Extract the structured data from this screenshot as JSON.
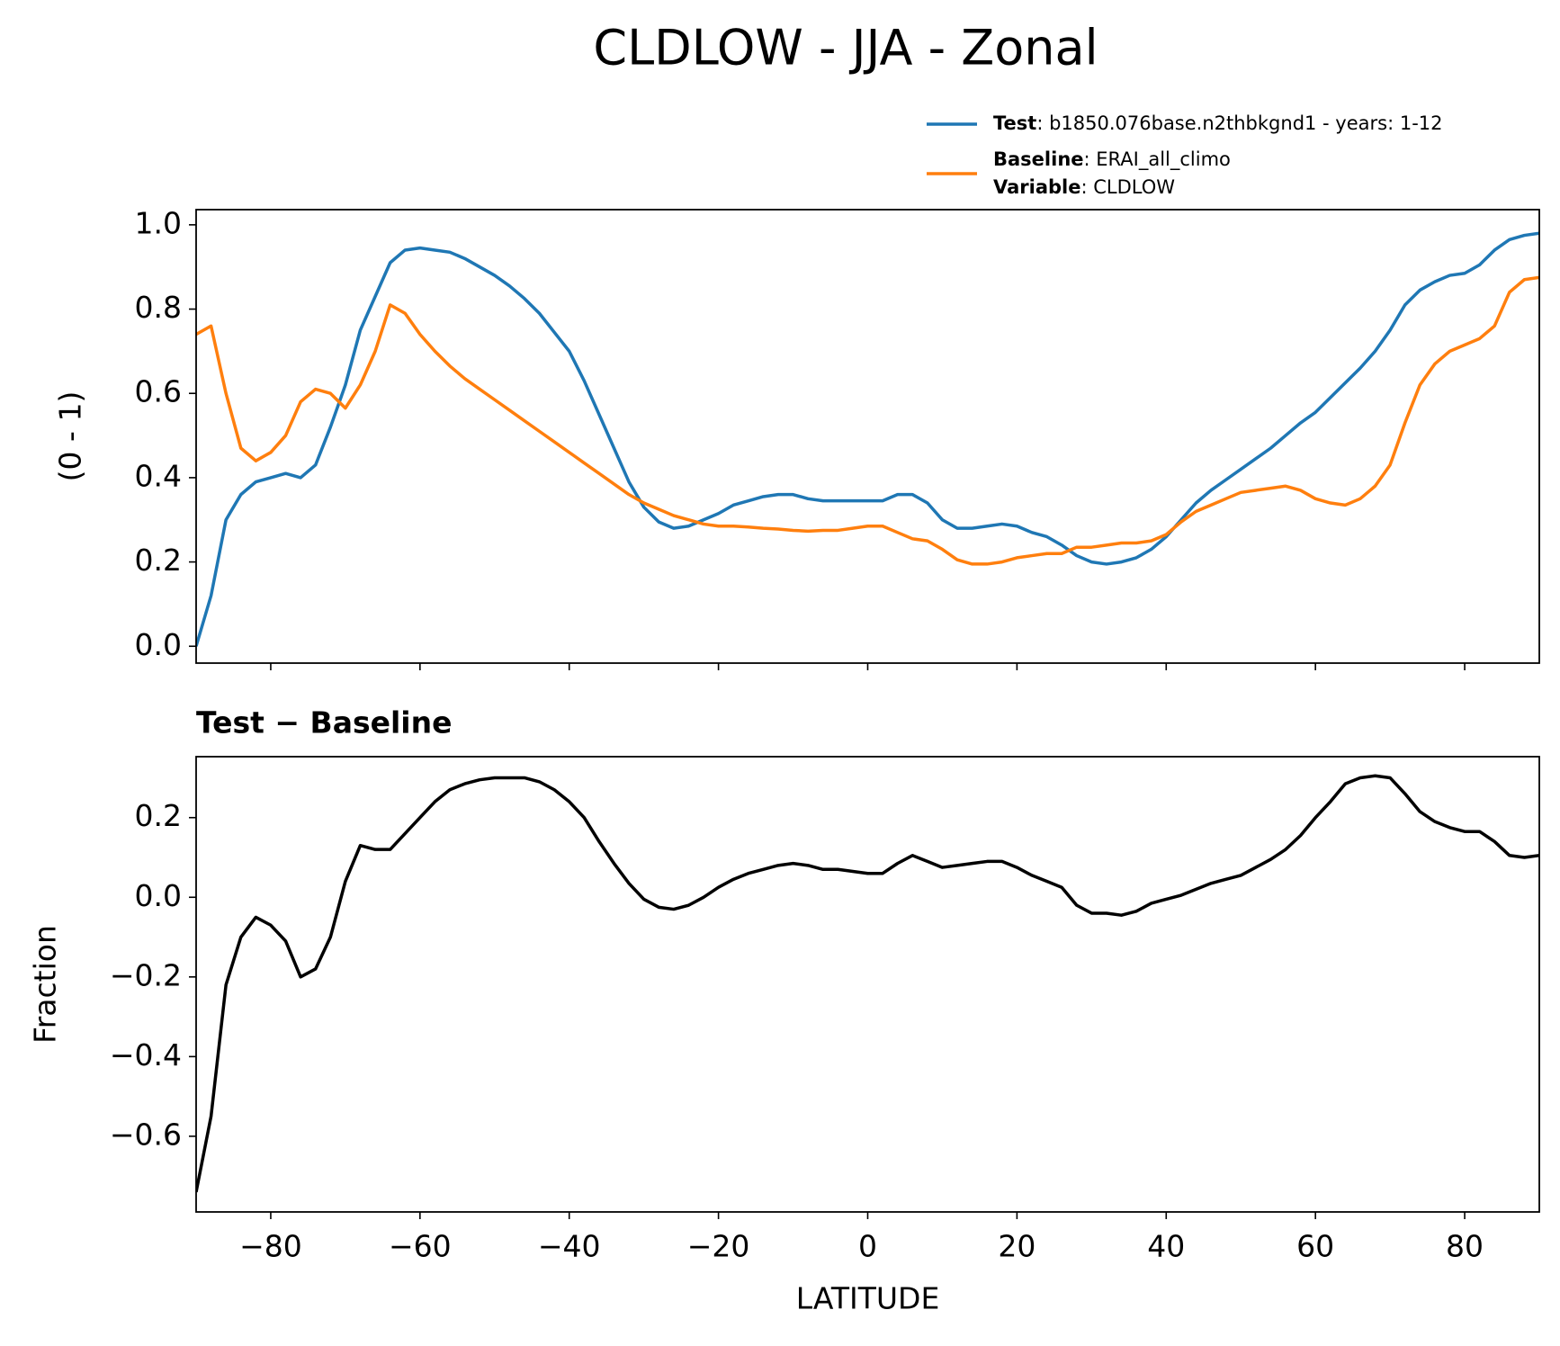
{
  "title": "CLDLOW - JJA - Zonal",
  "chart_data": [
    {
      "type": "line",
      "ylabel": "(0 - 1)",
      "x": [
        -90,
        -88,
        -86,
        -84,
        -82,
        -80,
        -78,
        -76,
        -74,
        -72,
        -70,
        -68,
        -66,
        -64,
        -62,
        -60,
        -58,
        -56,
        -54,
        -52,
        -50,
        -48,
        -46,
        -44,
        -42,
        -40,
        -38,
        -36,
        -34,
        -32,
        -30,
        -28,
        -26,
        -24,
        -22,
        -20,
        -18,
        -16,
        -14,
        -12,
        -10,
        -8,
        -6,
        -4,
        -2,
        0,
        2,
        4,
        6,
        8,
        10,
        12,
        14,
        16,
        18,
        20,
        22,
        24,
        26,
        28,
        30,
        32,
        34,
        36,
        38,
        40,
        42,
        44,
        46,
        48,
        50,
        52,
        54,
        56,
        58,
        60,
        62,
        64,
        66,
        68,
        70,
        72,
        74,
        76,
        78,
        80,
        82,
        84,
        86,
        88,
        90
      ],
      "series": [
        {
          "name": "Test",
          "label": ": b1850.076base.n2thbkgnd1 - years: 1-12",
          "color": "#1f77b4",
          "values": [
            0.0,
            0.12,
            0.3,
            0.36,
            0.39,
            0.4,
            0.41,
            0.4,
            0.43,
            0.52,
            0.62,
            0.75,
            0.83,
            0.91,
            0.94,
            0.945,
            0.94,
            0.935,
            0.92,
            0.9,
            0.88,
            0.855,
            0.825,
            0.79,
            0.745,
            0.7,
            0.63,
            0.55,
            0.47,
            0.39,
            0.33,
            0.295,
            0.28,
            0.285,
            0.3,
            0.315,
            0.335,
            0.345,
            0.355,
            0.36,
            0.36,
            0.35,
            0.345,
            0.345,
            0.345,
            0.345,
            0.345,
            0.36,
            0.36,
            0.34,
            0.3,
            0.28,
            0.28,
            0.285,
            0.29,
            0.285,
            0.27,
            0.26,
            0.24,
            0.215,
            0.2,
            0.195,
            0.2,
            0.21,
            0.23,
            0.26,
            0.3,
            0.34,
            0.37,
            0.395,
            0.42,
            0.445,
            0.47,
            0.5,
            0.53,
            0.555,
            0.59,
            0.625,
            0.66,
            0.7,
            0.75,
            0.81,
            0.845,
            0.865,
            0.88,
            0.885,
            0.905,
            0.94,
            0.965,
            0.975,
            0.98
          ]
        },
        {
          "name": "Baseline",
          "label": ": ERAI_all_climo",
          "color": "#ff7f0e",
          "values": [
            0.74,
            0.76,
            0.6,
            0.47,
            0.44,
            0.46,
            0.5,
            0.58,
            0.61,
            0.6,
            0.565,
            0.62,
            0.7,
            0.81,
            0.79,
            0.74,
            0.7,
            0.665,
            0.635,
            0.61,
            0.585,
            0.56,
            0.535,
            0.51,
            0.485,
            0.46,
            0.435,
            0.41,
            0.385,
            0.36,
            0.34,
            0.325,
            0.31,
            0.3,
            0.29,
            0.285,
            0.285,
            0.283,
            0.28,
            0.278,
            0.275,
            0.273,
            0.275,
            0.275,
            0.28,
            0.285,
            0.285,
            0.27,
            0.255,
            0.25,
            0.23,
            0.205,
            0.195,
            0.195,
            0.2,
            0.21,
            0.215,
            0.22,
            0.22,
            0.235,
            0.235,
            0.24,
            0.245,
            0.245,
            0.25,
            0.265,
            0.295,
            0.32,
            0.335,
            0.35,
            0.365,
            0.37,
            0.375,
            0.38,
            0.37,
            0.35,
            0.34,
            0.335,
            0.35,
            0.38,
            0.43,
            0.53,
            0.62,
            0.67,
            0.7,
            0.715,
            0.73,
            0.76,
            0.84,
            0.87,
            0.875
          ]
        }
      ],
      "legend_extra": {
        "name": "Variable",
        "label": ": CLDLOW"
      },
      "xlim": [
        -90,
        90
      ],
      "xticks": [
        {
          "value": -80,
          "label": "−80"
        },
        {
          "value": -60,
          "label": "−60"
        },
        {
          "value": -40,
          "label": "−40"
        },
        {
          "value": -20,
          "label": "−20"
        },
        0,
        20,
        40,
        60,
        80
      ],
      "ylim": [
        -0.04,
        1.036
      ],
      "yticks": [
        {
          "value": 0,
          "label": "0.0"
        },
        {
          "value": 0.2,
          "label": "0.2"
        },
        {
          "value": 0.4,
          "label": "0.4"
        },
        {
          "value": 0.6,
          "label": "0.6"
        },
        {
          "value": 0.8,
          "label": "0.8"
        },
        {
          "value": 1,
          "label": "1.0"
        }
      ]
    },
    {
      "type": "line",
      "title": "Test − Baseline",
      "xlabel": "LATITUDE",
      "ylabel": "Fraction",
      "color": "#000000",
      "x": [
        -90,
        -88,
        -86,
        -84,
        -82,
        -80,
        -78,
        -76,
        -74,
        -72,
        -70,
        -68,
        -66,
        -64,
        -62,
        -60,
        -58,
        -56,
        -54,
        -52,
        -50,
        -48,
        -46,
        -44,
        -42,
        -40,
        -38,
        -36,
        -34,
        -32,
        -30,
        -28,
        -26,
        -24,
        -22,
        -20,
        -18,
        -16,
        -14,
        -12,
        -10,
        -8,
        -6,
        -4,
        -2,
        0,
        2,
        4,
        6,
        8,
        10,
        12,
        14,
        16,
        18,
        20,
        22,
        24,
        26,
        28,
        30,
        32,
        34,
        36,
        38,
        40,
        42,
        44,
        46,
        48,
        50,
        52,
        54,
        56,
        58,
        60,
        62,
        64,
        66,
        68,
        70,
        72,
        74,
        76,
        78,
        80,
        82,
        84,
        86,
        88,
        90
      ],
      "values": [
        -0.74,
        -0.55,
        -0.22,
        -0.1,
        -0.05,
        -0.07,
        -0.11,
        -0.2,
        -0.18,
        -0.1,
        0.04,
        0.13,
        0.12,
        0.12,
        0.16,
        0.2,
        0.24,
        0.27,
        0.285,
        0.295,
        0.3,
        0.3,
        0.3,
        0.29,
        0.27,
        0.24,
        0.2,
        0.14,
        0.085,
        0.035,
        -0.005,
        -0.025,
        -0.03,
        -0.02,
        0.0,
        0.025,
        0.045,
        0.06,
        0.07,
        0.08,
        0.085,
        0.08,
        0.07,
        0.07,
        0.065,
        0.06,
        0.06,
        0.085,
        0.105,
        0.09,
        0.075,
        0.08,
        0.085,
        0.09,
        0.09,
        0.075,
        0.055,
        0.04,
        0.025,
        -0.02,
        -0.04,
        -0.04,
        -0.045,
        -0.035,
        -0.015,
        -0.005,
        0.005,
        0.02,
        0.035,
        0.045,
        0.055,
        0.075,
        0.095,
        0.12,
        0.155,
        0.2,
        0.24,
        0.285,
        0.3,
        0.305,
        0.3,
        0.26,
        0.215,
        0.19,
        0.175,
        0.165,
        0.165,
        0.14,
        0.105,
        0.1,
        0.105
      ],
      "xlim": [
        -90,
        90
      ],
      "xticks": [
        {
          "value": -80,
          "label": "−80"
        },
        {
          "value": -60,
          "label": "−60"
        },
        {
          "value": -40,
          "label": "−40"
        },
        {
          "value": -20,
          "label": "−20"
        },
        0,
        20,
        40,
        60,
        80
      ],
      "ylim": [
        -0.79,
        0.353
      ],
      "yticks": [
        {
          "value": -0.6,
          "label": "−0.6"
        },
        {
          "value": -0.4,
          "label": "−0.4"
        },
        {
          "value": -0.2,
          "label": "−0.2"
        },
        {
          "value": 0,
          "label": "0.0"
        },
        {
          "value": 0.2,
          "label": "0.2"
        }
      ]
    }
  ]
}
